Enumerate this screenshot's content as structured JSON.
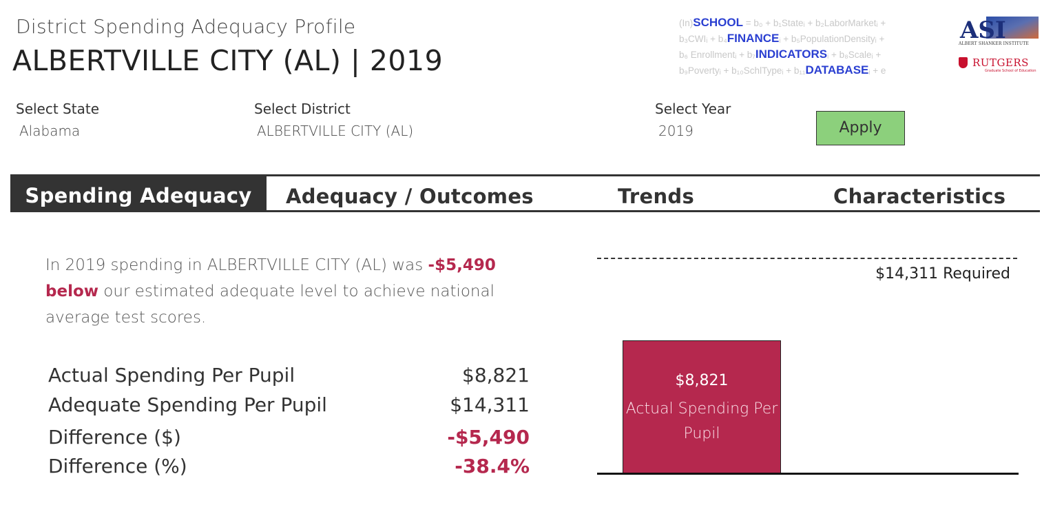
{
  "header": {
    "profile_label": "District Spending Adequacy Profile",
    "title": "ALBERTVILLE CITY (AL) | 2019"
  },
  "logos": {
    "formula_lines": [
      {
        "prefix": "(In)",
        "keyword": "SCHOOL",
        "rest": " = b₀ + b₁Stateᵢ + b₂LaborMarketᵢ +"
      },
      {
        "prefix": "b₃CWIᵢ + b₄",
        "keyword": "FINANCE",
        "rest": "ᵢ + b₅PopulationDensityᵢ +"
      },
      {
        "prefix": "b₆ Enrollmentᵢ + b₇",
        "keyword": "INDICATORS",
        "rest": "ᵢ + b₈Scaleᵢ +"
      },
      {
        "prefix": "b₉Povertyᵢ + b₁₀SchlTypeᵢ + b₁₁",
        "keyword": "DATABASE",
        "rest": "ᵢ + e"
      }
    ],
    "asi_letters": "ASI",
    "asi_caption": "ALBERT SHANKER INSTITUTE",
    "rutgers_name": "RUTGERS",
    "rutgers_sub": "Graduate School of Education"
  },
  "filters": {
    "state_label": "Select State",
    "state_value": "Alabama",
    "district_label": "Select District",
    "district_value": "ALBERTVILLE CITY (AL)",
    "year_label": "Select Year",
    "year_value": "2019",
    "apply_label": "Apply"
  },
  "tabs": [
    {
      "label": "Spending Adequacy",
      "active": true
    },
    {
      "label": "Adequacy / Outcomes",
      "active": false
    },
    {
      "label": "Trends",
      "active": false
    },
    {
      "label": "Characteristics",
      "active": false
    }
  ],
  "summary": {
    "part1": "In 2019 spending in ALBERTVILLE CITY (AL) was ",
    "amount": "-$5,490",
    "part2": "below",
    "part3": " our estimated adequate level to achieve national average test scores."
  },
  "metrics": [
    {
      "label": "Actual Spending Per Pupil",
      "value": "$8,821"
    },
    {
      "label": "Adequate Spending Per Pupil",
      "value": "$14,311"
    },
    {
      "label": "Difference ($)",
      "value": "-$5,490"
    },
    {
      "label": "Difference (%)",
      "value": "-38.4%"
    }
  ],
  "colors": {
    "accent": "#b5284e",
    "apply_bg": "#8cd07c",
    "active_tab": "#333333"
  },
  "chart_data": {
    "type": "bar",
    "categories": [
      "Actual Spending Per Pupil"
    ],
    "values": [
      8821
    ],
    "reference_line": {
      "value": 14311,
      "label": "$14,311 Required"
    },
    "bar_value_label": "$8,821",
    "bar_label": "Actual Spending Per Pupil"
  }
}
